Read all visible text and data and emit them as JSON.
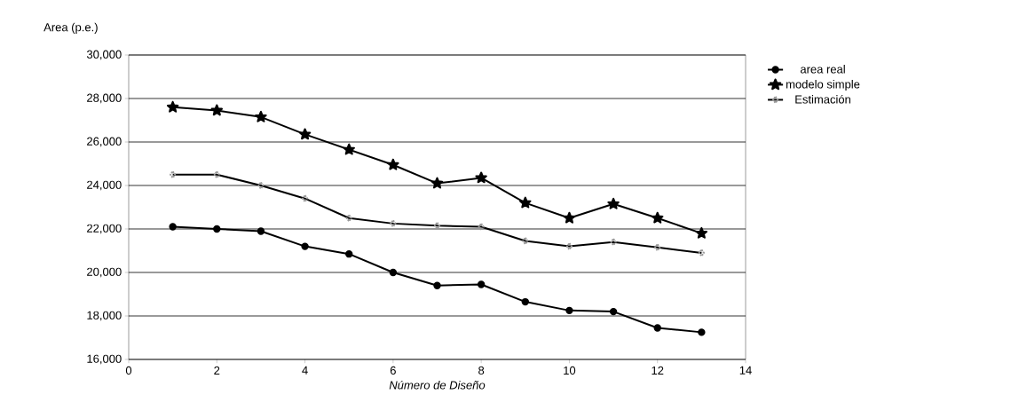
{
  "chart_data": {
    "type": "line",
    "xlabel": "Número de Diseño",
    "ylabel": "Area (p.e.)",
    "x": [
      1,
      2,
      3,
      4,
      5,
      6,
      7,
      8,
      9,
      10,
      11,
      12,
      13
    ],
    "series": [
      {
        "name": "area real",
        "color": "#000000",
        "marker": "circle",
        "values": [
          22100,
          22000,
          21900,
          21200,
          20850,
          20000,
          19400,
          19450,
          18650,
          18250,
          18200,
          17450,
          17250
        ]
      },
      {
        "name": "modelo simple",
        "color": "#000000",
        "marker": "star",
        "values": [
          27600,
          27450,
          27150,
          26350,
          25650,
          24950,
          24100,
          24350,
          23200,
          22500,
          23150,
          22500,
          21800
        ]
      },
      {
        "name": "Estimación",
        "color": "#000000",
        "marker": "diamond",
        "values": [
          24500,
          24500,
          24000,
          23400,
          22500,
          22250,
          22150,
          22100,
          21450,
          21200,
          21400,
          21150,
          20900
        ]
      }
    ],
    "xlim": [
      0,
      14
    ],
    "xticks": [
      0,
      2,
      4,
      6,
      8,
      10,
      12,
      14
    ],
    "ylim": [
      16000,
      30000
    ],
    "yticks": [
      {
        "value": 16000,
        "label": "16,000"
      },
      {
        "value": 18000,
        "label": "18,000"
      },
      {
        "value": 20000,
        "label": "20,000"
      },
      {
        "value": 22000,
        "label": "22,000"
      },
      {
        "value": 24000,
        "label": "24,000"
      },
      {
        "value": 26000,
        "label": "26,000"
      },
      {
        "value": 28000,
        "label": "28,000"
      },
      {
        "value": 30000,
        "label": "30,000"
      }
    ],
    "grid": "y",
    "legend": "right",
    "line_style": "solid"
  }
}
